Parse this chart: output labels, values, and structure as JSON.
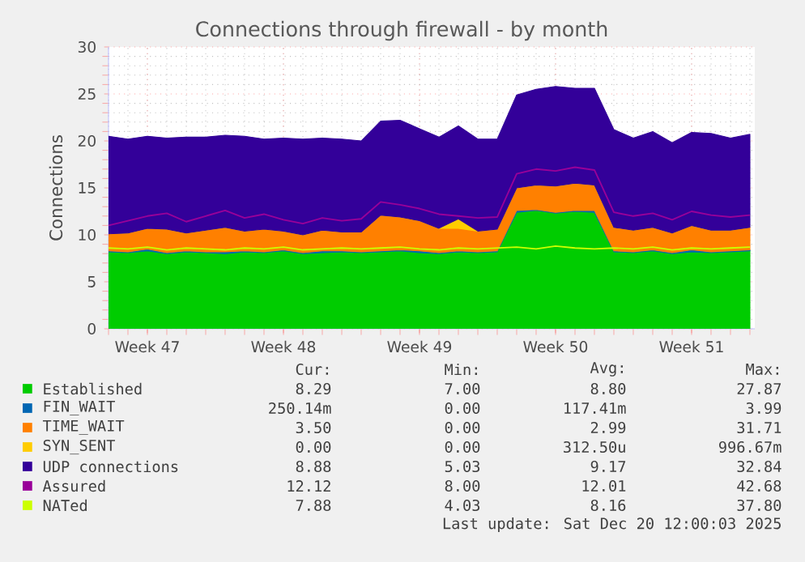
{
  "chart_data": {
    "type": "area",
    "title": "Connections through firewall - by month",
    "ylabel": "Connections",
    "stacked": true,
    "grid": true,
    "legend": "bottom",
    "ylim": [
      0,
      30
    ],
    "yticks": [
      0,
      5,
      10,
      15,
      20,
      25,
      30
    ],
    "categories": [
      null,
      null,
      "Week 47",
      null,
      null,
      null,
      null,
      null,
      null,
      "Week 48",
      null,
      null,
      null,
      null,
      null,
      null,
      "Week 49",
      null,
      null,
      null,
      null,
      null,
      null,
      "Week 50",
      null,
      null,
      null,
      null,
      null,
      null,
      "Week 51",
      null,
      null,
      null
    ],
    "series": [
      {
        "name": "Established",
        "color": "#00cc00",
        "values": [
          8.2,
          8.1,
          8.3,
          8.0,
          8.2,
          8.1,
          8.0,
          8.2,
          8.1,
          8.3,
          8.0,
          8.1,
          8.2,
          8.1,
          8.2,
          8.3,
          8.1,
          8.0,
          8.2,
          8.1,
          8.2,
          12.4,
          12.6,
          12.3,
          12.5,
          12.4,
          8.2,
          8.1,
          8.3,
          8.0,
          8.2,
          8.1,
          8.2,
          8.3
        ]
      },
      {
        "name": "FIN_WAIT",
        "color": "#0066b3",
        "values": [
          0.1,
          0.1,
          0.2,
          0.1,
          0.1,
          0.1,
          0.2,
          0.1,
          0.1,
          0.1,
          0.1,
          0.2,
          0.1,
          0.1,
          0.1,
          0.1,
          0.2,
          0.1,
          0.1,
          0.1,
          0.1,
          0.2,
          0.1,
          0.1,
          0.1,
          0.2,
          0.1,
          0.1,
          0.1,
          0.1,
          0.2,
          0.1,
          0.1,
          0.1
        ]
      },
      {
        "name": "TIME_WAIT",
        "color": "#ff8000",
        "values": [
          1.8,
          2.0,
          2.2,
          2.5,
          1.9,
          2.3,
          2.6,
          2.1,
          2.4,
          2.0,
          1.9,
          2.2,
          2.0,
          2.1,
          3.8,
          3.5,
          3.2,
          2.6,
          2.4,
          2.2,
          2.3,
          2.4,
          2.6,
          2.8,
          2.9,
          2.7,
          2.5,
          2.3,
          2.4,
          2.1,
          2.6,
          2.3,
          2.2,
          2.4
        ]
      },
      {
        "name": "SYN_SENT",
        "color": "#ffcc00",
        "values": [
          0,
          0,
          0,
          0,
          0,
          0,
          0,
          0,
          0,
          0,
          0,
          0,
          0,
          0,
          0,
          0,
          0,
          0,
          1,
          0,
          0,
          0,
          0,
          0,
          0,
          0,
          0,
          0,
          0,
          0,
          0,
          0,
          0,
          0
        ]
      },
      {
        "name": "UDP connections",
        "color": "#330099",
        "values": [
          10.4,
          10.0,
          9.8,
          9.7,
          10.2,
          9.9,
          9.8,
          10.1,
          9.6,
          9.9,
          10.2,
          9.8,
          9.9,
          9.7,
          10.0,
          10.3,
          9.8,
          9.7,
          9.9,
          9.8,
          9.6,
          9.9,
          10.2,
          10.6,
          10.1,
          10.3,
          10.4,
          9.8,
          10.2,
          9.6,
          9.9,
          10.3,
          9.8,
          9.9
        ]
      },
      {
        "name": "Assured",
        "type": "line",
        "color": "#990099",
        "values": [
          11.0,
          11.5,
          12.0,
          12.3,
          11.4,
          12.0,
          12.6,
          11.8,
          12.2,
          11.6,
          11.2,
          11.8,
          11.5,
          11.7,
          13.5,
          13.2,
          12.8,
          12.2,
          12.0,
          11.8,
          11.9,
          16.5,
          17.0,
          16.8,
          17.2,
          16.9,
          12.4,
          12.0,
          12.3,
          11.6,
          12.5,
          12.1,
          11.9,
          12.1
        ]
      },
      {
        "name": "NATed",
        "type": "line",
        "color": "#ccff00",
        "values": [
          8.6,
          8.5,
          8.7,
          8.4,
          8.6,
          8.5,
          8.4,
          8.6,
          8.5,
          8.7,
          8.4,
          8.5,
          8.6,
          8.5,
          8.6,
          8.7,
          8.5,
          8.4,
          8.6,
          8.5,
          8.6,
          8.7,
          8.5,
          8.8,
          8.6,
          8.5,
          8.6,
          8.5,
          8.7,
          8.4,
          8.6,
          8.5,
          8.6,
          8.7
        ]
      }
    ],
    "annotations": [
      "Cur:",
      "Min:",
      "Avg:",
      "Max:",
      "8.29",
      "7.00",
      "8.80",
      "27.87",
      "250.14m",
      "0.00",
      "117.41m",
      "3.99",
      "3.50",
      "0.00",
      "2.99",
      "31.71",
      "0.00",
      "0.00",
      "312.50u",
      "996.67m",
      "8.88",
      "5.03",
      "9.17",
      "32.84",
      "12.12",
      "8.00",
      "12.01",
      "42.68",
      "7.88",
      "4.03",
      "8.16",
      "37.80",
      "Last update: Sat Dec 20 12:00:03 2025"
    ]
  }
}
